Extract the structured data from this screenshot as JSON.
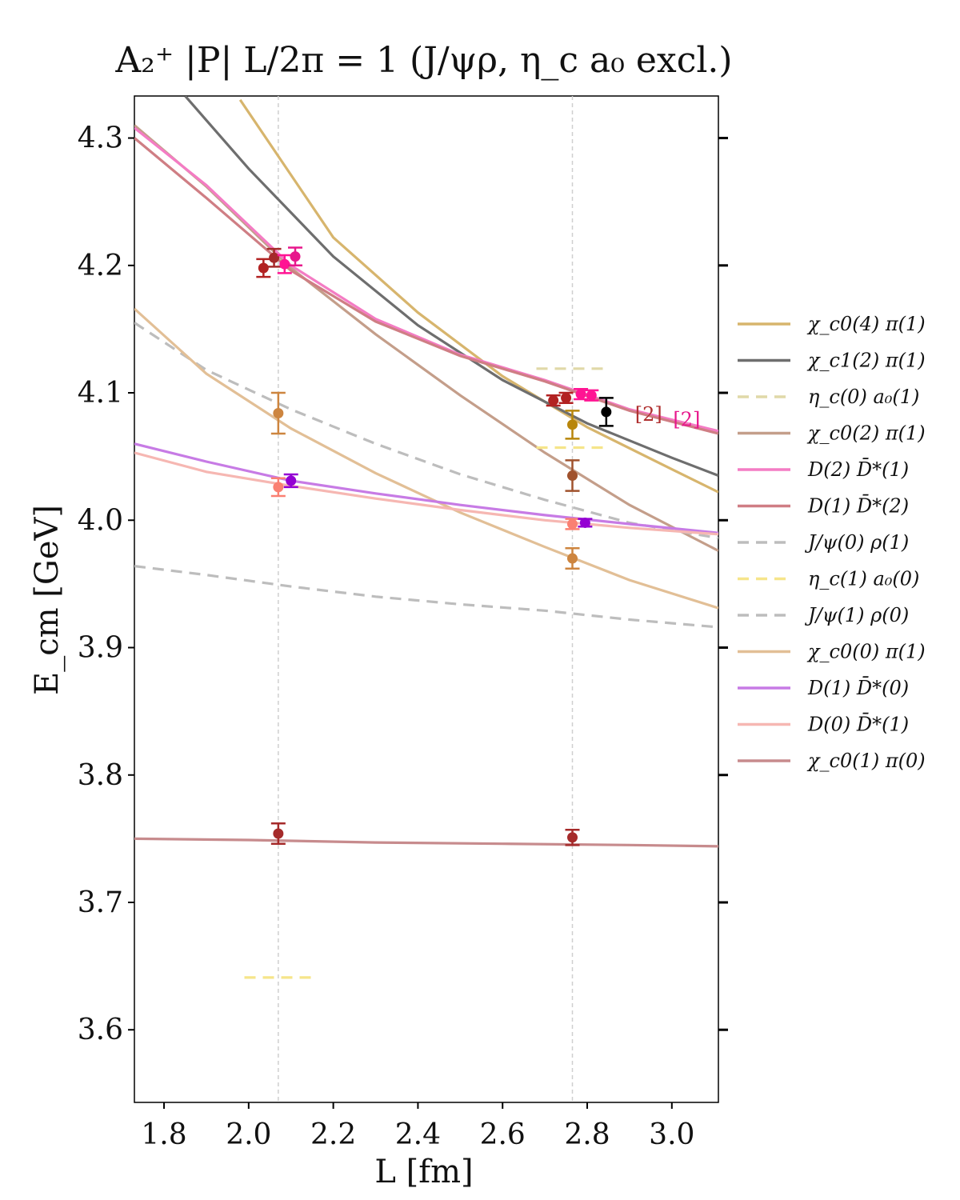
{
  "chart_data": {
    "type": "line",
    "title": "A₂⁺ |P| L/2π = 1  (J/ψρ, η_c a₀ excl.)",
    "xlabel": "L [fm]",
    "ylabel": "E_cm [GeV]",
    "xlim": [
      1.73,
      3.11
    ],
    "ylim": [
      3.543,
      4.333
    ],
    "xticks": [
      "1.8",
      "2.0",
      "2.2",
      "2.4",
      "2.6",
      "2.8",
      "3.0"
    ],
    "yticks": [
      "3.6",
      "3.7",
      "3.8",
      "3.9",
      "4.0",
      "4.1",
      "4.2",
      "4.3"
    ],
    "grid": false,
    "vlines": [
      2.07,
      2.765
    ],
    "series": [
      {
        "name": "χ_c0(4) π(1)",
        "color": "#d7b56d",
        "dash": false,
        "x": [
          1.98,
          2.2,
          2.4,
          2.6,
          2.8,
          3.0,
          3.11
        ],
        "y": [
          4.33,
          4.222,
          4.163,
          4.113,
          4.073,
          4.04,
          4.022
        ]
      },
      {
        "name": "χ_c1(2) π(1)",
        "color": "#6e6e6e",
        "dash": false,
        "x": [
          1.85,
          2.0,
          2.2,
          2.4,
          2.6,
          2.8,
          3.0,
          3.11
        ],
        "y": [
          4.333,
          4.276,
          4.207,
          4.153,
          4.11,
          4.076,
          4.049,
          4.035
        ]
      },
      {
        "name": "η_c(0) a₀(1)",
        "color": "#e0d9a8",
        "dash": true,
        "x": [
          2.68,
          2.85
        ],
        "y": [
          4.119,
          4.119
        ]
      },
      {
        "name": "χ_c0(2) π(1)",
        "color": "#c49e8a",
        "dash": false,
        "x": [
          1.73,
          1.9,
          2.1,
          2.3,
          2.5,
          2.7,
          2.9,
          3.11
        ],
        "y": [
          4.31,
          4.262,
          4.198,
          4.146,
          4.098,
          4.053,
          4.012,
          3.976
        ]
      },
      {
        "name": "D(2) D̄*(1)",
        "color": "#f47cc4",
        "dash": false,
        "x": [
          1.73,
          1.9,
          2.1,
          2.3,
          2.5,
          2.7,
          2.9,
          3.11
        ],
        "y": [
          4.308,
          4.263,
          4.2,
          4.158,
          4.13,
          4.11,
          4.087,
          4.07
        ]
      },
      {
        "name": "D(1) D̄*(2)",
        "color": "#cf7e84",
        "dash": false,
        "x": [
          1.73,
          1.9,
          2.1,
          2.3,
          2.5,
          2.7,
          2.9,
          3.11
        ],
        "y": [
          4.3,
          4.253,
          4.196,
          4.156,
          4.129,
          4.109,
          4.086,
          4.068
        ]
      },
      {
        "name": "J/ψ(0) ρ(1)",
        "color": "#bdbdbd",
        "dash": true,
        "x": [
          1.73,
          1.9,
          2.1,
          2.3,
          2.5,
          2.7,
          2.9,
          3.11
        ],
        "y": [
          4.155,
          4.118,
          4.087,
          4.06,
          4.036,
          4.016,
          3.998,
          3.986
        ]
      },
      {
        "name": "η_c(1) a₀(0)",
        "color": "#f6e58a",
        "dash": true,
        "x": [
          2.68,
          2.85
        ],
        "y": [
          4.057,
          4.057
        ]
      },
      {
        "name": "J/ψ(1) ρ(0)",
        "color": "#bdbdbd",
        "dash": true,
        "x": [
          1.73,
          1.9,
          2.1,
          2.3,
          2.5,
          2.7,
          2.9,
          3.11
        ],
        "y": [
          3.964,
          3.957,
          3.948,
          3.94,
          3.934,
          3.929,
          3.922,
          3.916
        ]
      },
      {
        "name": "χ_c0(0) π(1)",
        "color": "#e2bf96",
        "dash": false,
        "x": [
          1.73,
          1.9,
          2.1,
          2.3,
          2.5,
          2.7,
          2.9,
          3.11
        ],
        "y": [
          4.166,
          4.115,
          4.072,
          4.037,
          4.006,
          3.979,
          3.953,
          3.931
        ]
      },
      {
        "name": "D(1) D̄*(0)",
        "color": "#c77be5",
        "dash": false,
        "x": [
          1.73,
          1.9,
          2.1,
          2.3,
          2.5,
          2.7,
          2.9,
          3.11
        ],
        "y": [
          4.06,
          4.046,
          4.031,
          4.021,
          4.012,
          4.004,
          3.997,
          3.99
        ]
      },
      {
        "name": "D(0) D̄*(1)",
        "color": "#f6b7b2",
        "dash": false,
        "x": [
          1.73,
          1.9,
          2.1,
          2.3,
          2.5,
          2.7,
          2.9,
          3.11
        ],
        "y": [
          4.053,
          4.038,
          4.027,
          4.017,
          4.008,
          4.0,
          3.994,
          3.989
        ]
      },
      {
        "name": "χ_c0(1) π(0)",
        "color": "#c78b8d",
        "dash": false,
        "x": [
          1.73,
          2.0,
          2.3,
          2.6,
          2.9,
          3.11
        ],
        "y": [
          3.75,
          3.749,
          3.747,
          3.746,
          3.745,
          3.744
        ]
      }
    ],
    "extra_segments": [
      {
        "color": "#f6e58a",
        "dash": true,
        "x": [
          1.99,
          2.16
        ],
        "y": [
          3.641,
          3.641
        ]
      }
    ],
    "points": [
      {
        "x": 2.035,
        "y": 4.198,
        "err": 0.007,
        "color": "#b22222"
      },
      {
        "x": 2.06,
        "y": 4.206,
        "err": 0.007,
        "color": "#a52a2a"
      },
      {
        "x": 2.085,
        "y": 4.201,
        "err": 0.007,
        "color": "#ff1493"
      },
      {
        "x": 2.11,
        "y": 4.207,
        "err": 0.007,
        "color": "#e7178c"
      },
      {
        "x": 2.07,
        "y": 4.084,
        "err": 0.016,
        "color": "#cd853f"
      },
      {
        "x": 2.07,
        "y": 4.026,
        "err": 0.007,
        "color": "#fa8072"
      },
      {
        "x": 2.1,
        "y": 4.031,
        "err": 0.005,
        "color": "#9400d3"
      },
      {
        "x": 2.07,
        "y": 3.754,
        "err": 0.008,
        "color": "#a52a2a"
      },
      {
        "x": 2.72,
        "y": 4.094,
        "err": 0.004,
        "color": "#b22222"
      },
      {
        "x": 2.75,
        "y": 4.096,
        "err": 0.004,
        "color": "#b22222"
      },
      {
        "x": 2.785,
        "y": 4.099,
        "err": 0.004,
        "color": "#ff1493"
      },
      {
        "x": 2.81,
        "y": 4.098,
        "err": 0.004,
        "color": "#ff1493"
      },
      {
        "x": 2.845,
        "y": 4.085,
        "err": 0.011,
        "color": "#000000"
      },
      {
        "x": 2.765,
        "y": 4.075,
        "err": 0.011,
        "color": "#b8860b"
      },
      {
        "x": 2.765,
        "y": 4.035,
        "err": 0.012,
        "color": "#a0522d"
      },
      {
        "x": 2.765,
        "y": 3.997,
        "err": 0.004,
        "color": "#fa8072"
      },
      {
        "x": 2.795,
        "y": 3.998,
        "err": 0.003,
        "color": "#9400d3"
      },
      {
        "x": 2.765,
        "y": 3.97,
        "err": 0.008,
        "color": "#cd853f"
      },
      {
        "x": 2.765,
        "y": 3.751,
        "err": 0.006,
        "color": "#a52a2a"
      }
    ],
    "annotations": [
      {
        "text": "[2]",
        "x": 2.945,
        "y": 4.078,
        "color": "#b03030"
      },
      {
        "text": "[2]",
        "x": 3.035,
        "y": 4.074,
        "color": "#e7178c"
      }
    ],
    "legend_position": "right"
  }
}
